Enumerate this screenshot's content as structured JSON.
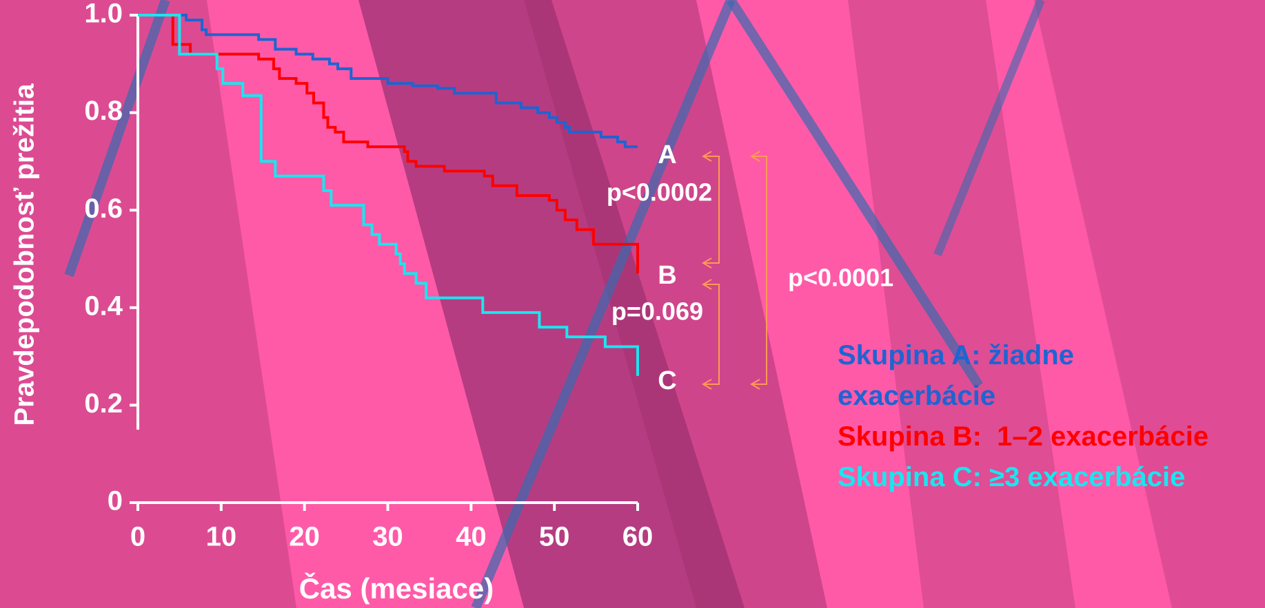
{
  "chart_data": {
    "type": "line",
    "step": true,
    "x_label": "Čas (mesiace)",
    "y_label": "Pravdepodobnosť prežitia",
    "xlim": [
      0,
      60
    ],
    "ylim": [
      0,
      1.0
    ],
    "xticks": [
      0,
      10,
      20,
      30,
      40,
      50,
      60
    ],
    "yticks": [
      0,
      0.2,
      0.4,
      0.6,
      0.8,
      {
        "value": 1.0,
        "label": "1.0"
      }
    ],
    "series": [
      {
        "name": "Skupina A: žiadne exacerbácie",
        "color": "#1e64d2",
        "x": [
          0,
          5,
          5.8,
          7.7,
          8.2,
          14.5,
          16.5,
          19,
          21,
          23,
          24,
          25.6,
          30,
          33,
          36,
          38,
          43,
          46,
          48,
          49.4,
          50.3,
          51.3,
          51.8,
          55.6,
          57.6,
          58.5,
          60
        ],
        "values": [
          1.0,
          1.0,
          0.99,
          0.97,
          0.96,
          0.95,
          0.93,
          0.92,
          0.91,
          0.9,
          0.89,
          0.87,
          0.86,
          0.855,
          0.85,
          0.84,
          0.82,
          0.81,
          0.8,
          0.79,
          0.78,
          0.77,
          0.76,
          0.75,
          0.74,
          0.73,
          0.73
        ]
      },
      {
        "name": "Skupina B:  1–2 exacerbácie",
        "color": "#ff0000",
        "x": [
          0,
          3.7,
          4.2,
          6.3,
          12,
          14.5,
          16.3,
          17,
          19,
          20.3,
          21.1,
          22.3,
          22.8,
          23.7,
          24.7,
          27.6,
          32,
          32.4,
          33.4,
          36.8,
          41.6,
          42.6,
          45.5,
          49.4,
          50.3,
          51.3,
          52.7,
          54.7,
          60,
          60
        ],
        "values": [
          1.0,
          1.0,
          0.94,
          0.92,
          0.92,
          0.91,
          0.89,
          0.87,
          0.86,
          0.84,
          0.82,
          0.79,
          0.77,
          0.76,
          0.74,
          0.73,
          0.72,
          0.7,
          0.69,
          0.68,
          0.67,
          0.65,
          0.63,
          0.62,
          0.6,
          0.58,
          0.56,
          0.53,
          0.53,
          0.47
        ]
      },
      {
        "name": "Skupina C: ≥3 exacerbácie",
        "color": "#19e6f0",
        "x": [
          0,
          4.4,
          5,
          8.9,
          9.5,
          10.2,
          12.6,
          14.8,
          16.5,
          22.3,
          23.2,
          27.1,
          28.1,
          29,
          31,
          31.5,
          32,
          33.4,
          34.6,
          41.4,
          48.2,
          51.5,
          56.1,
          60,
          60
        ],
        "values": [
          1.0,
          1.0,
          0.92,
          0.92,
          0.89,
          0.86,
          0.835,
          0.7,
          0.67,
          0.64,
          0.61,
          0.57,
          0.55,
          0.53,
          0.51,
          0.49,
          0.47,
          0.45,
          0.42,
          0.39,
          0.36,
          0.34,
          0.32,
          0.3,
          0.26
        ]
      }
    ],
    "annotations": [
      "A",
      "B",
      "C",
      "p<0.0002",
      "p=0.069",
      "p<0.0001"
    ]
  }
}
